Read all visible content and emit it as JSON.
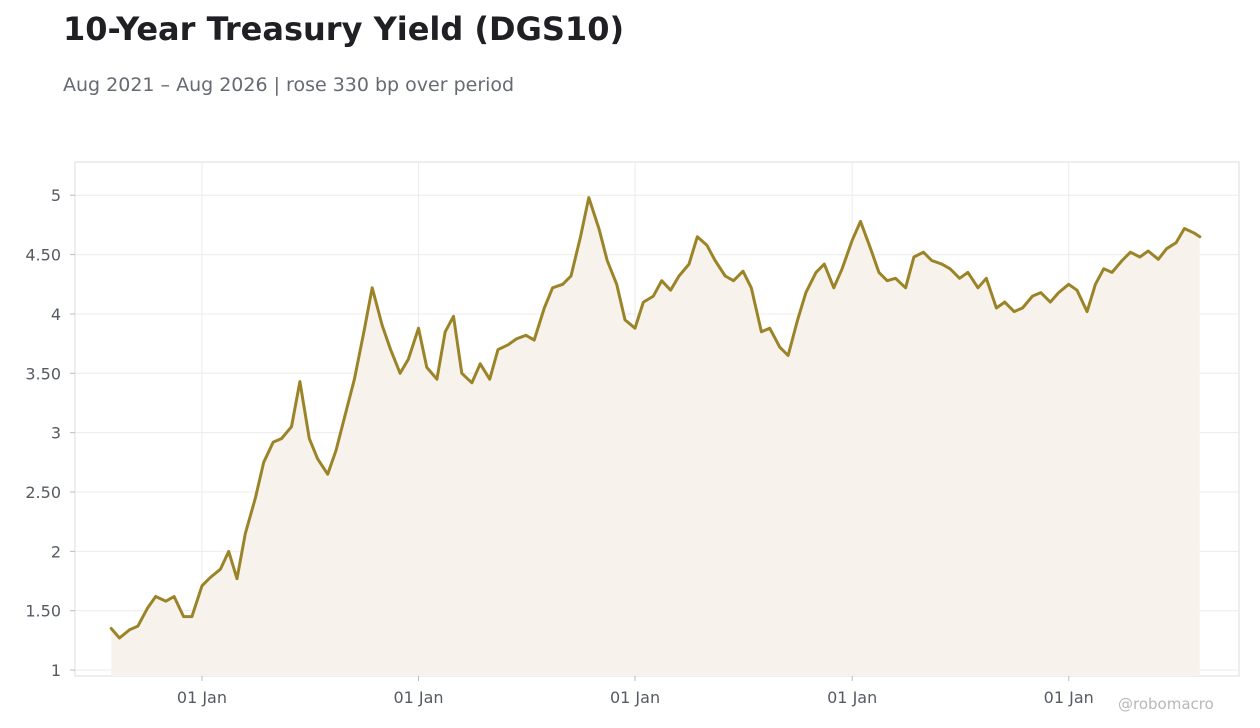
{
  "title": "10-Year Treasury Yield (DGS10)",
  "subtitle": "Aug 2021 – Aug 2026 | rose 330 bp over period",
  "watermark": "@robomacro",
  "colors": {
    "line": "#9b8428",
    "fill": "#f7f3ec",
    "grid": "#ececec",
    "frame": "#dddddd"
  },
  "chart_data": {
    "type": "line",
    "title": "10-Year Treasury Yield (DGS10)",
    "subtitle": "Aug 2021 – Aug 2026 | rose 330 bp over period",
    "xlabel": "",
    "ylabel": "",
    "x_tick_labels": [
      "01 Jan",
      "01 Jan",
      "01 Jan",
      "01 Jan",
      "01 Jan"
    ],
    "x_tick_dates": [
      "2022-01-01",
      "2023-01-01",
      "2024-01-01",
      "2025-01-01",
      "2026-01-01"
    ],
    "y_tick_labels": [
      "1",
      "1.50",
      "2",
      "2.50",
      "3",
      "3.50",
      "4",
      "4.50",
      "5"
    ],
    "xlim": [
      "2021-06-01",
      "2026-10-15"
    ],
    "ylim": [
      0.95,
      5.28
    ],
    "grid": true,
    "legend": "none",
    "area_fill": true,
    "series": [
      {
        "x": [
          "2021-08-01",
          "2021-08-15",
          "2021-09-01",
          "2021-09-15",
          "2021-10-01",
          "2021-10-15",
          "2021-11-01",
          "2021-11-15",
          "2021-12-01",
          "2021-12-15",
          "2022-01-01",
          "2022-01-15",
          "2022-02-01",
          "2022-02-15",
          "2022-03-01",
          "2022-03-15",
          "2022-04-01",
          "2022-04-15",
          "2022-05-01",
          "2022-05-15",
          "2022-06-01",
          "2022-06-15",
          "2022-07-01",
          "2022-07-15",
          "2022-08-01",
          "2022-08-15",
          "2022-09-01",
          "2022-09-15",
          "2022-10-01",
          "2022-10-15",
          "2022-11-01",
          "2022-11-15",
          "2022-12-01",
          "2022-12-15",
          "2023-01-01",
          "2023-01-15",
          "2023-02-01",
          "2023-02-15",
          "2023-03-01",
          "2023-03-15",
          "2023-04-01",
          "2023-04-15",
          "2023-05-01",
          "2023-05-15",
          "2023-06-01",
          "2023-06-15",
          "2023-07-01",
          "2023-07-15",
          "2023-08-01",
          "2023-08-15",
          "2023-09-01",
          "2023-09-15",
          "2023-10-01",
          "2023-10-15",
          "2023-11-01",
          "2023-11-15",
          "2023-12-01",
          "2023-12-15",
          "2024-01-01",
          "2024-01-15",
          "2024-02-01",
          "2024-02-15",
          "2024-03-01",
          "2024-03-15",
          "2024-04-01",
          "2024-04-15",
          "2024-05-01",
          "2024-05-15",
          "2024-06-01",
          "2024-06-15",
          "2024-07-01",
          "2024-07-15",
          "2024-08-01",
          "2024-08-15",
          "2024-09-01",
          "2024-09-15",
          "2024-10-01",
          "2024-10-15",
          "2024-11-01",
          "2024-11-15",
          "2024-12-01",
          "2024-12-15",
          "2025-01-01",
          "2025-01-15",
          "2025-02-01",
          "2025-02-15",
          "2025-03-01",
          "2025-03-15",
          "2025-04-01",
          "2025-04-15",
          "2025-05-01",
          "2025-05-15",
          "2025-06-01",
          "2025-06-15",
          "2025-07-01",
          "2025-07-15",
          "2025-08-01",
          "2025-08-15",
          "2025-09-01",
          "2025-09-15",
          "2025-10-01",
          "2025-10-15",
          "2025-11-01",
          "2025-11-15",
          "2025-12-01",
          "2025-12-15",
          "2026-01-01",
          "2026-01-15",
          "2026-02-01",
          "2026-02-15",
          "2026-03-01",
          "2026-03-15",
          "2026-04-01",
          "2026-04-15",
          "2026-05-01",
          "2026-05-15",
          "2026-06-01",
          "2026-06-15",
          "2026-07-01",
          "2026-07-15",
          "2026-08-01",
          "2026-08-10"
        ],
        "values": [
          1.35,
          1.27,
          1.34,
          1.37,
          1.52,
          1.62,
          1.58,
          1.62,
          1.45,
          1.45,
          1.71,
          1.78,
          1.85,
          2.0,
          1.77,
          2.15,
          2.45,
          2.75,
          2.92,
          2.95,
          3.05,
          3.43,
          2.95,
          2.78,
          2.65,
          2.85,
          3.18,
          3.45,
          3.85,
          4.22,
          3.9,
          3.7,
          3.5,
          3.62,
          3.88,
          3.55,
          3.45,
          3.85,
          3.98,
          3.5,
          3.42,
          3.58,
          3.45,
          3.7,
          3.74,
          3.79,
          3.82,
          3.78,
          4.05,
          4.22,
          4.25,
          4.32,
          4.65,
          4.98,
          4.72,
          4.45,
          4.25,
          3.95,
          3.88,
          4.1,
          4.15,
          4.28,
          4.2,
          4.32,
          4.42,
          4.65,
          4.58,
          4.45,
          4.32,
          4.28,
          4.36,
          4.22,
          3.85,
          3.88,
          3.72,
          3.65,
          3.95,
          4.18,
          4.35,
          4.42,
          4.22,
          4.38,
          4.62,
          4.78,
          4.55,
          4.35,
          4.28,
          4.3,
          4.22,
          4.48,
          4.52,
          4.45,
          4.42,
          4.38,
          4.3,
          4.35,
          4.22,
          4.3,
          4.05,
          4.1,
          4.02,
          4.05,
          4.15,
          4.18,
          4.1,
          4.18,
          4.25,
          4.2,
          4.02,
          4.25,
          4.38,
          4.35,
          4.45,
          4.52,
          4.48,
          4.53,
          4.46,
          4.55,
          4.6,
          4.72,
          4.68,
          4.65
        ]
      }
    ]
  }
}
